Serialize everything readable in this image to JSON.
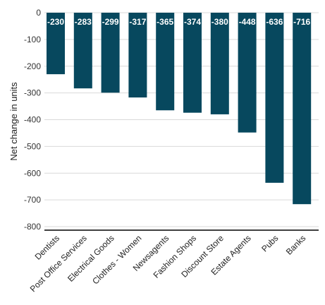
{
  "chart_data": {
    "type": "bar",
    "title": "",
    "xlabel": "",
    "ylabel": "Net change in units",
    "categories": [
      "Dentists",
      "Post Office Services",
      "Electrical Goods",
      "Clothes - Women",
      "Newsagents",
      "Fashion Shops",
      "Discount Store",
      "Estate Agents",
      "Pubs",
      "Banks"
    ],
    "values": [
      -230,
      -283,
      -299,
      -317,
      -365,
      -374,
      -380,
      -448,
      -636,
      -716
    ],
    "data_labels": [
      "-230",
      "-283",
      "-299",
      "-317",
      "-365",
      "-374",
      "-380",
      "-448",
      "-636",
      "-716"
    ],
    "yticks": [
      0,
      -100,
      -200,
      -300,
      -400,
      -500,
      -600,
      -700,
      -800
    ],
    "ytick_labels": [
      "0",
      "-100",
      "-200",
      "-300",
      "-400",
      "-500",
      "-600",
      "-700",
      "-800"
    ],
    "ylim": [
      -800,
      0
    ],
    "grid": true,
    "legend": "none",
    "bar_color": "#07485e"
  }
}
